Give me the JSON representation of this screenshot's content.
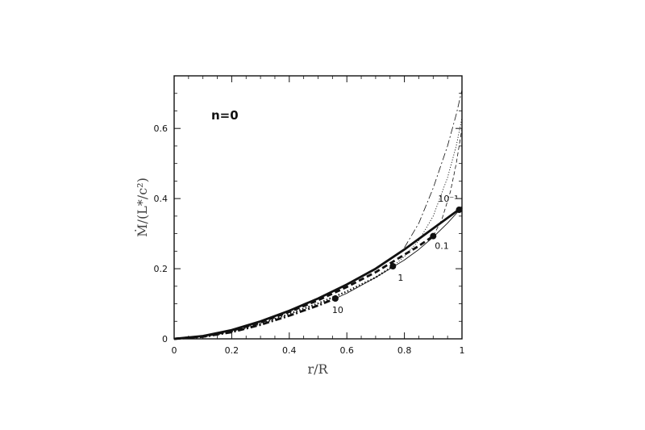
{
  "chart_data": {
    "type": "line",
    "panel_label": "n=0",
    "xlabel": "r/R",
    "ylabel": "Ṁ/(L*/c²)",
    "xlim": [
      0,
      1
    ],
    "ylim": [
      0,
      0.75
    ],
    "xticks": [
      "0",
      "0.2",
      "0.4",
      "0.6",
      "0.8",
      "1"
    ],
    "yticks": [
      "0",
      "0.2",
      "0.4",
      "0.6"
    ],
    "grid": false,
    "series": [
      {
        "style": "solid-thick",
        "x": [
          0,
          0.1,
          0.2,
          0.3,
          0.4,
          0.5,
          0.6,
          0.7,
          0.8,
          0.9,
          1.0
        ],
        "y": [
          0,
          0.008,
          0.025,
          0.05,
          0.08,
          0.115,
          0.155,
          0.2,
          0.255,
          0.315,
          0.375
        ]
      },
      {
        "style": "dashed-thick",
        "x": [
          0,
          0.1,
          0.2,
          0.3,
          0.4,
          0.5,
          0.6,
          0.7,
          0.8,
          0.85,
          0.9
        ],
        "y": [
          0,
          0.007,
          0.023,
          0.047,
          0.077,
          0.11,
          0.148,
          0.19,
          0.24,
          0.265,
          0.293
        ]
      },
      {
        "style": "dotted-thick",
        "x": [
          0,
          0.1,
          0.2,
          0.3,
          0.4,
          0.5,
          0.6,
          0.7,
          0.76
        ],
        "y": [
          0,
          0.006,
          0.021,
          0.043,
          0.071,
          0.101,
          0.135,
          0.175,
          0.207
        ]
      },
      {
        "style": "dashdot-thick",
        "x": [
          0,
          0.1,
          0.2,
          0.3,
          0.4,
          0.5,
          0.56
        ],
        "y": [
          0,
          0.006,
          0.019,
          0.04,
          0.066,
          0.095,
          0.115
        ]
      },
      {
        "style": "solid-thin",
        "x": [
          0.56,
          0.6,
          0.7,
          0.8,
          0.85,
          0.9,
          0.95,
          1.0
        ],
        "y": [
          0.115,
          0.13,
          0.175,
          0.225,
          0.255,
          0.29,
          0.33,
          0.375
        ]
      },
      {
        "style": "dashdot-thin",
        "x": [
          0.8,
          0.85,
          0.9,
          0.95,
          0.98,
          1.0
        ],
        "y": [
          0.26,
          0.33,
          0.43,
          0.55,
          0.64,
          0.71
        ]
      },
      {
        "style": "dotted-thin",
        "x": [
          0.76,
          0.8,
          0.85,
          0.9,
          0.95,
          0.98,
          1.0
        ],
        "y": [
          0.207,
          0.235,
          0.28,
          0.35,
          0.46,
          0.55,
          0.63
        ]
      },
      {
        "style": "dashed-thin",
        "x": [
          0.9,
          0.93,
          0.96,
          0.98,
          1.0
        ],
        "y": [
          0.293,
          0.34,
          0.42,
          0.5,
          0.6
        ]
      }
    ],
    "markers": [
      {
        "x": 0.56,
        "y": 0.115,
        "label": "10"
      },
      {
        "x": 0.76,
        "y": 0.207,
        "label": "1"
      },
      {
        "x": 0.9,
        "y": 0.293,
        "label": "0.1"
      },
      {
        "x": 0.99,
        "y": 0.368,
        "label": "10⁻³"
      }
    ]
  }
}
